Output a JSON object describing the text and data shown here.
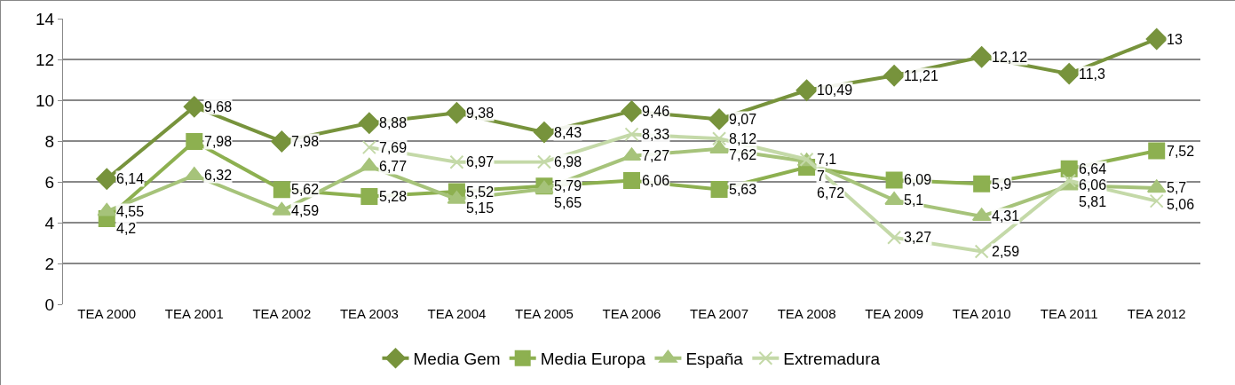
{
  "chart_data": {
    "type": "line",
    "categories": [
      "TEA 2000",
      "TEA 2001",
      "TEA 2002",
      "TEA 2003",
      "TEA 2004",
      "TEA 2005",
      "TEA 2006",
      "TEA 2007",
      "TEA 2008",
      "TEA 2009",
      "TEA 2010",
      "TEA 2011",
      "TEA 2012"
    ],
    "series": [
      {
        "name": "Media Gem",
        "color": "#77933c",
        "marker": "diamond",
        "values": [
          6.14,
          9.68,
          7.98,
          8.88,
          9.38,
          8.43,
          9.46,
          9.07,
          10.49,
          11.21,
          12.12,
          11.3,
          13
        ],
        "value_labels": [
          "6,14",
          "9,68",
          "7,98",
          "8,88",
          "9,38",
          "8,43",
          "9,46",
          "9,07",
          "10,49",
          "11,21",
          "12,12",
          "11,3",
          "13"
        ]
      },
      {
        "name": "Media Europa",
        "color": "#8db050",
        "marker": "square",
        "values": [
          4.2,
          7.98,
          5.62,
          5.28,
          5.52,
          5.79,
          6.06,
          5.63,
          6.72,
          6.09,
          5.9,
          6.64,
          7.52
        ],
        "value_labels": [
          "4,2",
          "7,98",
          "5,62",
          "5,28",
          "5,52",
          "5,79",
          "6,06",
          "5,63",
          "6,72",
          "6,09",
          "5,9",
          "6,64",
          "7,52"
        ]
      },
      {
        "name": "España",
        "color": "#a6c37a",
        "marker": "triangle",
        "values": [
          4.55,
          6.32,
          4.59,
          6.77,
          5.15,
          5.65,
          7.27,
          7.62,
          7,
          5.1,
          4.31,
          5.81,
          5.7
        ],
        "value_labels": [
          "4,55",
          "6,32",
          "4,59",
          "6,77",
          "5,15",
          "5,65",
          "7,27",
          "7,62",
          "7",
          "5,1",
          "4,31",
          "5,81",
          "5,7"
        ]
      },
      {
        "name": "Extremadura",
        "color": "#c4d9a8",
        "marker": "cross",
        "values": [
          null,
          null,
          null,
          7.69,
          6.97,
          6.98,
          8.33,
          8.12,
          7.1,
          3.27,
          2.59,
          6.06,
          5.06
        ],
        "value_labels": [
          null,
          null,
          null,
          "7,69",
          "6,97",
          "6,98",
          "8,33",
          "8,12",
          "7,1",
          "3,27",
          "2,59",
          "6,06",
          "5,06"
        ]
      }
    ],
    "ylim": [
      0,
      14
    ],
    "yticks": [
      0,
      2,
      4,
      6,
      8,
      10,
      12,
      14
    ],
    "grid": "y",
    "legend": "bottom",
    "line_style": "solid"
  }
}
